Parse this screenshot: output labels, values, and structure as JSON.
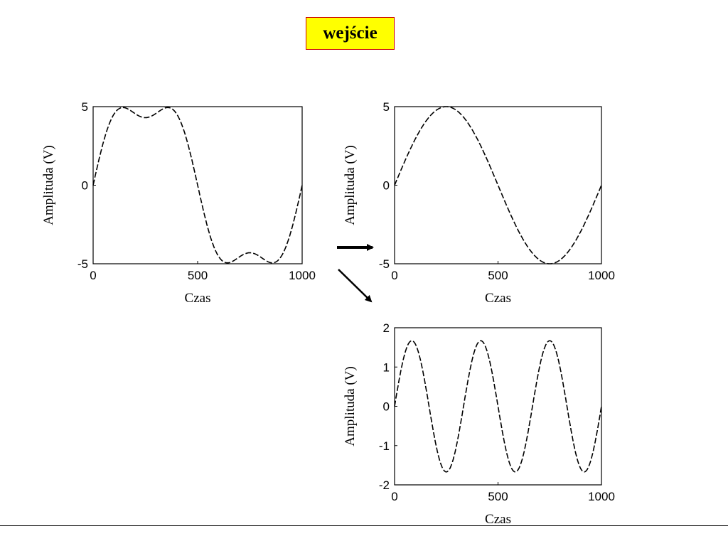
{
  "header": {
    "title": "wejście",
    "bg_color": "#ffff00",
    "border_color": "#cc0000"
  },
  "chart_data": [
    {
      "type": "line",
      "role": "input",
      "xlabel": "Czas",
      "ylabel": "Amplituda (V)",
      "xlim": [
        0,
        1000
      ],
      "ylim": [
        -5,
        5
      ],
      "xticks": [
        0,
        500,
        1000
      ],
      "yticks": [
        -5,
        0,
        5
      ],
      "series": [
        {
          "components": [
            {
              "amp": 5.6,
              "cycles": 1
            },
            {
              "amp": 1.3,
              "cycles": 3
            }
          ],
          "style": "dashed"
        }
      ]
    },
    {
      "type": "line",
      "role": "output-1",
      "xlabel": "Czas",
      "ylabel": "Amplituda (V)",
      "xlim": [
        0,
        1000
      ],
      "ylim": [
        -5,
        5
      ],
      "xticks": [
        0,
        500,
        1000
      ],
      "yticks": [
        -5,
        0,
        5
      ],
      "series": [
        {
          "components": [
            {
              "amp": 5,
              "cycles": 1
            }
          ],
          "style": "dashed"
        }
      ]
    },
    {
      "type": "line",
      "role": "output-3",
      "xlabel": "Czas",
      "ylabel": "Amplituda (V)",
      "xlim": [
        0,
        1000
      ],
      "ylim": [
        -2,
        2
      ],
      "xticks": [
        0,
        500,
        1000
      ],
      "yticks": [
        -2,
        -1,
        0,
        1,
        2
      ],
      "series": [
        {
          "components": [
            {
              "amp": 1.67,
              "cycles": 3
            }
          ],
          "style": "dashed"
        }
      ]
    }
  ]
}
